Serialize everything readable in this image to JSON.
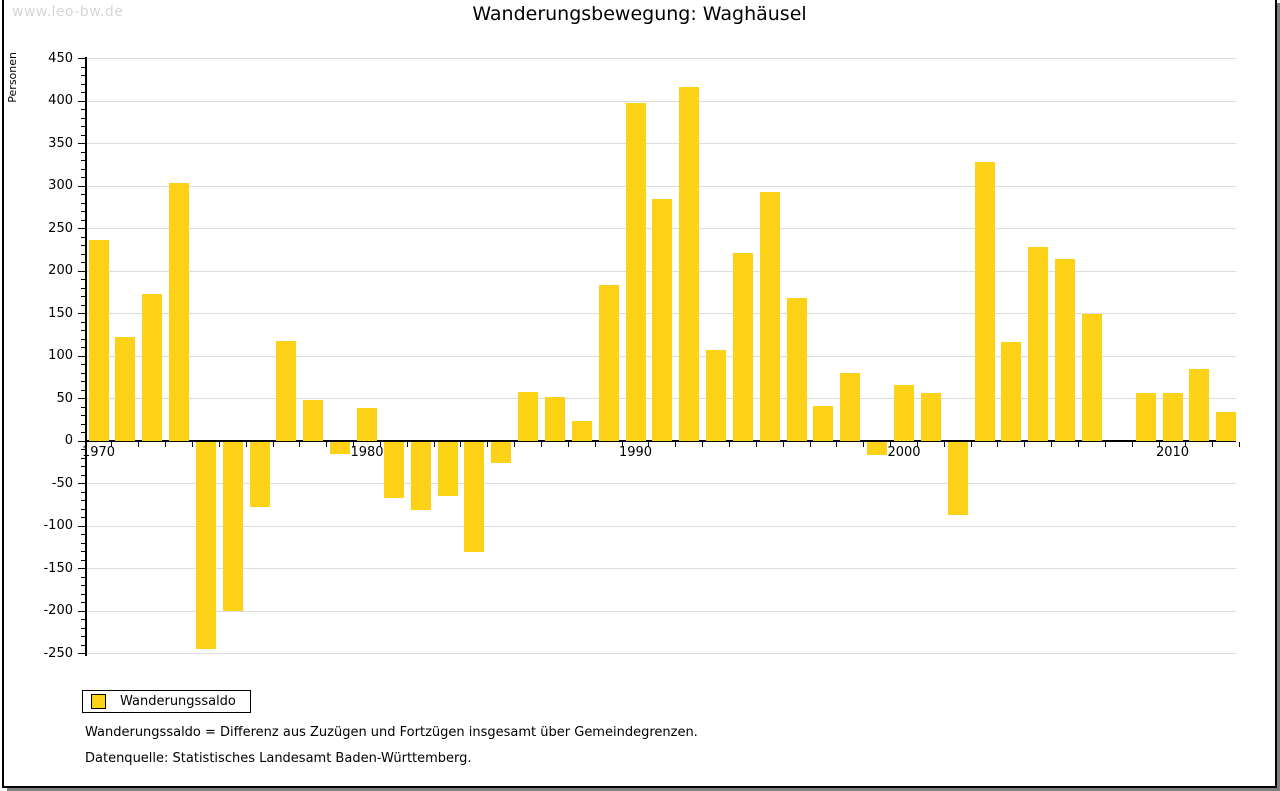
{
  "watermark": "www.leo-bw.de",
  "title": "Wanderungsbewegung: Waghäusel",
  "y_axis_title": "Personen",
  "legend": {
    "label": "Wanderungssaldo",
    "swatch_color": "#FCD116"
  },
  "footnotes": [
    "Wanderungssaldo = Differenz aus Zuzügen und Fortzügen insgesamt über Gemeindegrenzen.",
    "Datenquelle: Statistisches Landesamt Baden-Württemberg."
  ],
  "colors": {
    "bar": "#FCD116",
    "grid": "#DCDCDC",
    "axis": "#000000",
    "watermark": "#D6D6D6",
    "frame_shadow": "#7F7F7F"
  },
  "chart_data": {
    "type": "bar",
    "title": "Wanderungsbewegung: Waghäusel",
    "xlabel": "",
    "ylabel": "Personen",
    "ylim": [
      -250,
      450
    ],
    "ytick_step": 50,
    "y_minor_tick_step": 10,
    "grid": true,
    "legend_position": "bottom-left",
    "series_name": "Wanderungssaldo",
    "categories": [
      1970,
      1971,
      1972,
      1973,
      1974,
      1975,
      1976,
      1977,
      1978,
      1979,
      1980,
      1981,
      1982,
      1983,
      1984,
      1985,
      1986,
      1987,
      1988,
      1989,
      1990,
      1991,
      1992,
      1993,
      1994,
      1995,
      1996,
      1997,
      1998,
      1999,
      2000,
      2001,
      2002,
      2003,
      2004,
      2005,
      2006,
      2007,
      2008,
      2009,
      2010,
      2011,
      2012
    ],
    "values": [
      236,
      122,
      173,
      304,
      -244,
      -199,
      -77,
      118,
      48,
      -14,
      39,
      -66,
      -80,
      -64,
      -129,
      -25,
      58,
      52,
      23,
      183,
      398,
      285,
      417,
      107,
      221,
      293,
      168,
      41,
      80,
      -15,
      66,
      57,
      -86,
      328,
      117,
      228,
      214,
      149,
      0,
      56,
      56,
      85,
      34
    ],
    "x_decade_labels": [
      1970,
      1980,
      1990,
      2000,
      2010
    ]
  }
}
